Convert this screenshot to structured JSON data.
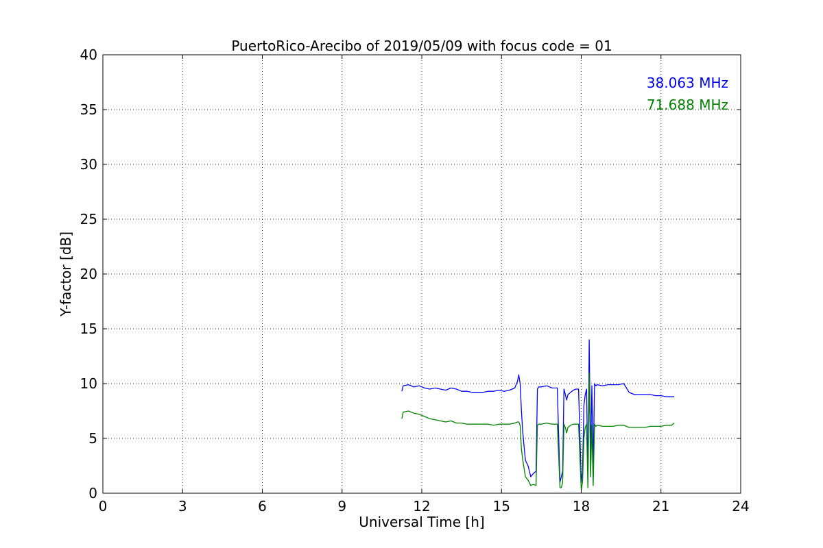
{
  "chart_data": {
    "type": "line",
    "title": "PuertoRico-Arecibo of 2019/05/09 with focus code = 01",
    "xlabel": "Universal Time [h]",
    "ylabel": "Y-factor [dB]",
    "xlim": [
      0,
      24
    ],
    "ylim": [
      0,
      40
    ],
    "xticks": [
      0,
      3,
      6,
      9,
      12,
      15,
      18,
      21,
      24
    ],
    "yticks": [
      0,
      5,
      10,
      15,
      20,
      25,
      30,
      35,
      40
    ],
    "xtick_labels": [
      "0",
      "3",
      "6",
      "9",
      "12",
      "15",
      "18",
      "21",
      "24"
    ],
    "ytick_labels": [
      "0",
      "5",
      "10",
      "15",
      "20",
      "25",
      "30",
      "35",
      "40"
    ],
    "grid": true,
    "legend_position": "top-right",
    "series": [
      {
        "name": "38.063 MHz",
        "color": "#0000ff",
        "x": [
          11.25,
          11.3,
          11.5,
          11.7,
          11.9,
          12.1,
          12.3,
          12.5,
          12.7,
          12.9,
          13.1,
          13.3,
          13.5,
          13.7,
          13.9,
          14.1,
          14.3,
          14.5,
          14.7,
          14.9,
          15.1,
          15.3,
          15.5,
          15.6,
          15.65,
          15.7,
          15.75,
          15.8,
          15.9,
          16.0,
          16.1,
          16.2,
          16.3,
          16.35,
          16.4,
          16.5,
          16.7,
          16.9,
          17.1,
          17.2,
          17.25,
          17.3,
          17.35,
          17.4,
          17.45,
          17.5,
          17.6,
          17.7,
          17.8,
          17.9,
          18.0,
          18.05,
          18.1,
          18.15,
          18.2,
          18.25,
          18.3,
          18.35,
          18.4,
          18.45,
          18.5,
          18.55,
          18.6,
          18.8,
          19.0,
          19.2,
          19.4,
          19.6,
          19.8,
          19.9,
          20.0,
          20.2,
          20.4,
          20.6,
          20.8,
          21.0,
          21.2,
          21.4,
          21.5
        ],
        "values": [
          9.3,
          9.8,
          9.9,
          9.7,
          9.8,
          9.6,
          9.5,
          9.6,
          9.5,
          9.4,
          9.6,
          9.5,
          9.3,
          9.3,
          9.2,
          9.2,
          9.2,
          9.3,
          9.3,
          9.4,
          9.3,
          9.4,
          9.6,
          10.2,
          10.8,
          10.0,
          7.5,
          5.5,
          3.0,
          2.5,
          1.5,
          1.8,
          2.0,
          9.5,
          9.7,
          9.7,
          9.8,
          9.6,
          9.6,
          1.0,
          1.5,
          2.0,
          9.5,
          9.0,
          8.5,
          9.0,
          9.2,
          9.4,
          9.5,
          9.5,
          1.0,
          2.0,
          8.0,
          9.0,
          9.5,
          1.0,
          14.0,
          3.0,
          9.8,
          2.0,
          10.0,
          9.8,
          9.9,
          9.8,
          9.9,
          9.9,
          9.9,
          10.0,
          9.2,
          9.1,
          9.0,
          9.0,
          9.0,
          9.0,
          8.9,
          8.9,
          8.8,
          8.8,
          8.8
        ]
      },
      {
        "name": "71.688 MHz",
        "color": "#008000",
        "x": [
          11.25,
          11.3,
          11.5,
          11.7,
          11.9,
          12.1,
          12.3,
          12.5,
          12.7,
          12.9,
          13.1,
          13.3,
          13.5,
          13.7,
          13.9,
          14.1,
          14.3,
          14.5,
          14.7,
          14.9,
          15.1,
          15.3,
          15.5,
          15.6,
          15.65,
          15.7,
          15.75,
          15.8,
          15.9,
          16.0,
          16.1,
          16.2,
          16.3,
          16.35,
          16.4,
          16.5,
          16.7,
          16.9,
          17.1,
          17.2,
          17.25,
          17.3,
          17.35,
          17.4,
          17.45,
          17.5,
          17.6,
          17.7,
          17.8,
          17.9,
          18.0,
          18.05,
          18.1,
          18.15,
          18.2,
          18.25,
          18.3,
          18.35,
          18.4,
          18.45,
          18.5,
          18.55,
          18.6,
          18.8,
          19.0,
          19.2,
          19.4,
          19.6,
          19.8,
          19.9,
          20.0,
          20.2,
          20.4,
          20.6,
          20.8,
          21.0,
          21.2,
          21.4,
          21.5
        ],
        "values": [
          6.8,
          7.4,
          7.5,
          7.3,
          7.2,
          7.0,
          6.8,
          6.7,
          6.6,
          6.5,
          6.6,
          6.4,
          6.4,
          6.3,
          6.3,
          6.3,
          6.3,
          6.3,
          6.2,
          6.3,
          6.3,
          6.3,
          6.4,
          6.5,
          6.5,
          6.2,
          4.0,
          3.0,
          1.5,
          1.2,
          0.7,
          0.8,
          0.7,
          6.2,
          6.3,
          6.3,
          6.4,
          6.3,
          6.3,
          0.5,
          0.5,
          1.0,
          6.3,
          6.0,
          5.5,
          6.0,
          6.2,
          6.3,
          6.3,
          6.3,
          0.3,
          1.0,
          5.0,
          6.0,
          6.3,
          0.5,
          11.0,
          1.5,
          6.2,
          0.7,
          6.3,
          6.1,
          6.2,
          6.1,
          6.1,
          6.1,
          6.2,
          6.2,
          6.0,
          6.0,
          6.0,
          6.0,
          6.0,
          6.1,
          6.1,
          6.1,
          6.2,
          6.2,
          6.4
        ]
      }
    ]
  }
}
